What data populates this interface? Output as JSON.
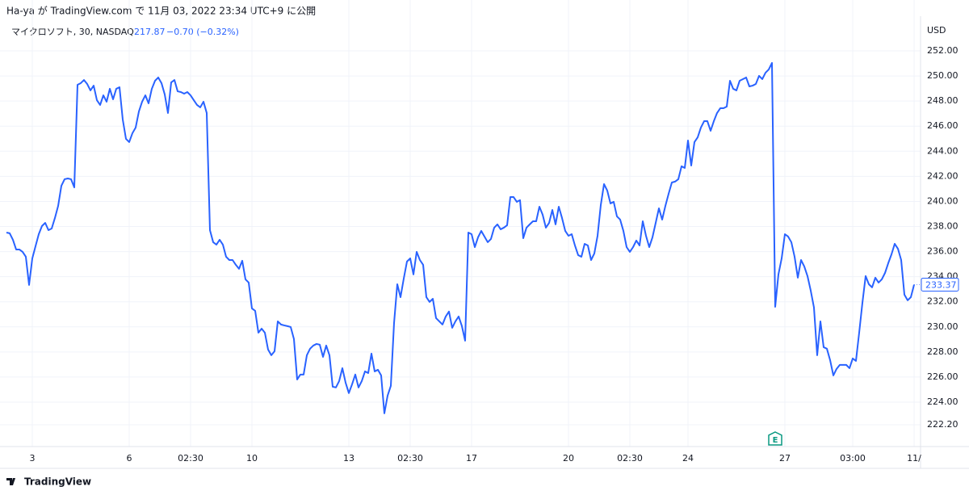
{
  "header": "Ha-ya が TradingView.com で 11月 03, 2022 23:34 UTC+9 に公開",
  "footer": "TradingView",
  "chart_data": {
    "type": "line",
    "price": "217.87",
    "change": "−0.70 (−0.32%)",
    "y_label": "USD",
    "ylim": [
      220.46,
      254.77
    ],
    "yticks": [
      {
        "value": 222.2,
        "label": "222.20"
      },
      {
        "value": 224,
        "label": "224.00"
      },
      {
        "value": 226,
        "label": "226.00"
      },
      {
        "value": 228,
        "label": "228.00"
      },
      {
        "value": 230,
        "label": "230.00"
      },
      {
        "value": 232,
        "label": "232.00"
      },
      {
        "value": 234,
        "label": "234.00"
      },
      {
        "value": 236,
        "label": "236.00"
      },
      {
        "value": 238,
        "label": "238.00"
      },
      {
        "value": 240,
        "label": "240.00"
      },
      {
        "value": 242,
        "label": "242.00"
      },
      {
        "value": 244,
        "label": "244.00"
      },
      {
        "value": 246,
        "label": "246.00"
      },
      {
        "value": 248,
        "label": "248.00"
      },
      {
        "value": 250,
        "label": "250.00"
      },
      {
        "value": 252,
        "label": "252.00"
      }
    ],
    "grid": true,
    "annotations": [
      {
        "text": "E",
        "x": 238
      }
    ],
    "categories": [
      null,
      null,
      null,
      null,
      null,
      null,
      null,
      null,
      "3",
      null,
      null,
      null,
      null,
      null,
      null,
      null,
      null,
      null,
      null,
      null,
      null,
      null,
      null,
      null,
      null,
      null,
      null,
      null,
      null,
      null,
      null,
      null,
      null,
      null,
      null,
      null,
      null,
      null,
      "6",
      null,
      null,
      null,
      null,
      null,
      null,
      null,
      null,
      null,
      null,
      null,
      null,
      null,
      null,
      null,
      null,
      null,
      null,
      "02:30",
      null,
      null,
      null,
      null,
      null,
      null,
      null,
      null,
      null,
      null,
      null,
      null,
      null,
      null,
      null,
      null,
      null,
      null,
      "10",
      null,
      null,
      null,
      null,
      null,
      null,
      null,
      null,
      null,
      null,
      null,
      null,
      null,
      null,
      null,
      null,
      null,
      null,
      null,
      null,
      null,
      null,
      null,
      null,
      null,
      null,
      null,
      null,
      null,
      "13",
      null,
      null,
      null,
      null,
      null,
      null,
      null,
      null,
      null,
      null,
      null,
      null,
      null,
      null,
      null,
      null,
      null,
      null,
      "02:30",
      null,
      null,
      null,
      null,
      null,
      null,
      null,
      null,
      null,
      null,
      null,
      null,
      null,
      null,
      null,
      null,
      null,
      null,
      "17",
      null,
      null,
      null,
      null,
      null,
      null,
      null,
      null,
      null,
      null,
      null,
      null,
      null,
      null,
      null,
      null,
      null,
      null,
      null,
      null,
      null,
      null,
      null,
      null,
      null,
      null,
      null,
      null,
      null,
      "20",
      null,
      null,
      null,
      null,
      null,
      null,
      null,
      null,
      null,
      null,
      null,
      null,
      null,
      null,
      null,
      null,
      null,
      null,
      "02:30",
      null,
      null,
      null,
      null,
      null,
      null,
      null,
      null,
      null,
      null,
      null,
      null,
      null,
      null,
      null,
      null,
      null,
      "24",
      null,
      null,
      null,
      null,
      null,
      null,
      null,
      null,
      null,
      null,
      null,
      null,
      null,
      null,
      null,
      null,
      null,
      null,
      null,
      null,
      null,
      null,
      null,
      null,
      null,
      null,
      null,
      null,
      null,
      "27",
      null,
      null,
      null,
      null,
      null,
      null,
      null,
      null,
      null,
      null,
      null,
      null,
      null,
      null,
      null,
      null,
      null,
      null,
      null,
      null,
      "03:00",
      null,
      null,
      null,
      null,
      null,
      null,
      null,
      null,
      null,
      null,
      null,
      null,
      null,
      null,
      null,
      null,
      null,
      null,
      "11/"
    ],
    "series": [
      {
        "name": "マイクロソフト, 30, NASDAQ",
        "color": "#2962ff",
        "values": [
          237.52,
          237.46,
          236.94,
          236.17,
          236.17,
          235.98,
          235.59,
          233.34,
          235.46,
          236.43,
          237.39,
          238.04,
          238.29,
          237.71,
          237.84,
          238.68,
          239.64,
          241.25,
          241.77,
          241.83,
          241.77,
          241.12,
          249.3,
          249.43,
          249.68,
          249.36,
          248.85,
          249.23,
          248.07,
          247.69,
          248.46,
          247.95,
          248.98,
          248.14,
          248.98,
          249.1,
          246.53,
          244.99,
          244.73,
          245.44,
          245.89,
          247.17,
          247.95,
          248.46,
          247.82,
          248.98,
          249.62,
          249.88,
          249.43,
          248.53,
          247.05,
          249.49,
          249.68,
          248.78,
          248.72,
          248.59,
          248.72,
          248.46,
          248.07,
          247.69,
          247.5,
          247.95,
          247.05,
          237.71,
          236.75,
          236.56,
          236.94,
          236.56,
          235.59,
          235.33,
          235.33,
          234.95,
          234.63,
          235.27,
          233.79,
          233.53,
          231.47,
          231.28,
          229.54,
          229.86,
          229.54,
          228.19,
          227.74,
          228.06,
          230.44,
          230.19,
          230.12,
          230.06,
          229.99,
          229.03,
          225.81,
          226.2,
          226.2,
          227.74,
          228.26,
          228.51,
          228.64,
          228.58,
          227.61,
          228.51,
          227.74,
          225.23,
          225.17,
          225.68,
          226.71,
          225.55,
          224.72,
          225.42,
          226.2,
          225.17,
          225.68,
          226.45,
          226.32,
          227.87,
          226.45,
          226.58,
          226.13,
          223.11,
          224.52,
          225.3,
          230.31,
          233.4,
          232.37,
          233.85,
          235.21,
          235.46,
          234.18,
          235.98,
          235.33,
          234.95,
          232.37,
          231.99,
          232.24,
          230.7,
          230.44,
          230.19,
          230.83,
          231.22,
          229.93,
          230.44,
          230.83,
          230.06,
          228.9,
          237.52,
          237.39,
          236.36,
          237.14,
          237.65,
          237.2,
          236.75,
          237.01,
          237.91,
          238.17,
          237.78,
          237.91,
          238.1,
          240.35,
          240.35,
          239.97,
          240.1,
          237.07,
          237.91,
          238.17,
          238.42,
          238.42,
          239.58,
          238.94,
          237.91,
          238.29,
          239.32,
          238.17,
          239.58,
          238.68,
          237.65,
          237.26,
          237.39,
          236.49,
          235.72,
          235.59,
          236.62,
          236.49,
          235.33,
          235.85,
          237.26,
          239.71,
          241.38,
          240.87,
          239.84,
          239.97,
          238.81,
          238.55,
          237.65,
          236.36,
          235.98,
          236.36,
          236.88,
          236.49,
          238.42,
          237.26,
          236.36,
          237.14,
          238.29,
          239.45,
          238.55,
          239.64,
          240.61,
          241.51,
          241.58,
          241.77,
          242.8,
          242.67,
          244.86,
          242.86,
          244.73,
          245.11,
          245.89,
          246.4,
          246.4,
          245.63,
          246.4,
          247.05,
          247.43,
          247.43,
          247.56,
          249.62,
          248.98,
          248.85,
          249.62,
          249.75,
          249.88,
          249.17,
          249.23,
          249.36,
          250.01,
          249.75,
          250.26,
          250.52,
          251.04,
          231.6,
          234.18,
          235.46,
          237.39,
          237.2,
          236.75,
          235.59,
          233.92,
          235.33,
          234.82,
          234.05,
          232.89,
          231.54,
          227.74,
          230.44,
          228.38,
          228.26,
          227.35,
          226.13,
          226.65,
          226.97,
          226.97,
          226.97,
          226.71,
          227.48,
          227.29,
          229.54,
          231.92,
          234.05,
          233.4,
          233.15,
          233.92,
          233.53,
          233.79,
          234.3,
          235.08,
          235.78,
          236.62,
          236.23,
          235.33,
          232.57,
          232.12,
          232.37,
          233.37
        ]
      }
    ]
  }
}
